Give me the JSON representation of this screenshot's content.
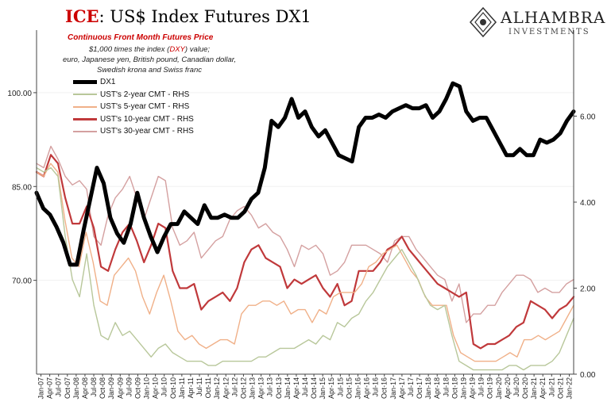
{
  "header": {
    "title_prefix": "ICE",
    "title_rest": ": US$ Index Futures DX1",
    "subtitle": "Continuous  Front Month Futures Price",
    "note_line1_pre": "$1,000 times the index (",
    "note_dxy": "DXY",
    "note_line1_post": ") value;",
    "note_line2": "euro, Japanese yen, British pound, Canadian dollar, Swedish krona and Swiss franc"
  },
  "logo": {
    "name": "ALHAMBRA",
    "sub": "INVESTMENTS",
    "icon": "alhambra-ornament-icon"
  },
  "colors": {
    "dx1": "#000000",
    "ust2": "#b8c79a",
    "ust5": "#f0b088",
    "ust10": "#c0393b",
    "ust30": "#d4a0a0"
  },
  "chart_data": {
    "type": "line",
    "left_axis": {
      "ticks": [
        "70.00",
        "85.00",
        "100.00"
      ],
      "tick_values": [
        70,
        85,
        100
      ],
      "ylim": [
        55,
        110
      ]
    },
    "right_axis": {
      "label": "RHS",
      "ticks": [
        "0.00",
        "2.00",
        "4.00",
        "6.00"
      ],
      "tick_values": [
        0,
        2,
        4,
        6
      ],
      "ylim": [
        0,
        8
      ]
    },
    "grid": false,
    "legend_position": "top-left",
    "x_tick_labels": [
      "Jan-07",
      "Apr-07",
      "Jul-07",
      "Oct-07",
      "Jan-08",
      "Apr-08",
      "Jul-08",
      "Oct-08",
      "Jan-09",
      "Apr-09",
      "Jul-09",
      "Oct-09",
      "Jan-10",
      "Apr-10",
      "Jul-10",
      "Oct-10",
      "Jan-11",
      "Apr-11",
      "Jul-11",
      "Oct-11",
      "Jan-12",
      "Apr-12",
      "Jul-12",
      "Oct-12",
      "Jan-13",
      "Apr-13",
      "Jul-13",
      "Oct-13",
      "Jan-14",
      "Apr-14",
      "Jul-14",
      "Oct-14",
      "Jan-15",
      "Apr-15",
      "Jul-15",
      "Oct-15",
      "Jan-16",
      "Apr-16",
      "Jul-16",
      "Oct-16",
      "Jan-17",
      "Apr-17",
      "Jul-17",
      "Oct-17",
      "Jan-18",
      "Apr-18",
      "Jul-18",
      "Oct-18",
      "Jan-19",
      "Apr-19",
      "Jul-19",
      "Oct-19",
      "Jan-20",
      "Apr-20",
      "Jul-20",
      "Oct-20",
      "Jan-21",
      "Apr-21",
      "Jul-21",
      "Oct-21",
      "Jan-22"
    ],
    "series": [
      {
        "key": "dx1",
        "name": "DX1",
        "axis": "left",
        "values": [
          84,
          81.5,
          80.5,
          78.5,
          76,
          72.5,
          72.5,
          78,
          83,
          88,
          85.5,
          80,
          77.5,
          76,
          79,
          84,
          80,
          77,
          74.5,
          77,
          79,
          79,
          81,
          80,
          79,
          82,
          80,
          80,
          80.5,
          80,
          80,
          81,
          83,
          84,
          88,
          95.5,
          94.5,
          96,
          99,
          96,
          97,
          94.5,
          93,
          94,
          92,
          90,
          89.5,
          89,
          94.5,
          96,
          96,
          96.5,
          96,
          97,
          97.5,
          98,
          97.5,
          97.5,
          98,
          96,
          97,
          99,
          101.5,
          101,
          97,
          95.5,
          96,
          96,
          94,
          92,
          90,
          90,
          91,
          90,
          90,
          92.5,
          92,
          92.5,
          93.5,
          95.5,
          97
        ]
      },
      {
        "key": "ust2",
        "name": "UST's 2-year CMT - RHS",
        "axis": "right",
        "values": [
          4.8,
          4.7,
          4.8,
          4.6,
          3.2,
          2.2,
          1.8,
          2.8,
          1.6,
          0.9,
          0.8,
          1.2,
          0.9,
          1.0,
          0.8,
          0.6,
          0.4,
          0.6,
          0.7,
          0.5,
          0.4,
          0.3,
          0.3,
          0.3,
          0.2,
          0.2,
          0.3,
          0.3,
          0.3,
          0.3,
          0.3,
          0.4,
          0.4,
          0.5,
          0.6,
          0.6,
          0.6,
          0.7,
          0.8,
          0.7,
          0.9,
          0.8,
          1.2,
          1.1,
          1.3,
          1.4,
          1.7,
          1.9,
          2.2,
          2.5,
          2.7,
          2.9,
          2.6,
          2.3,
          1.9,
          1.6,
          1.5,
          1.6,
          0.9,
          0.3,
          0.2,
          0.1,
          0.1,
          0.1,
          0.1,
          0.1,
          0.2,
          0.2,
          0.1,
          0.2,
          0.2,
          0.2,
          0.3,
          0.5,
          0.9,
          1.3
        ]
      },
      {
        "key": "ust5",
        "name": "UST's 5-year CMT - RHS",
        "axis": "right",
        "values": [
          4.7,
          4.6,
          4.9,
          4.7,
          3.6,
          2.7,
          2.5,
          3.3,
          2.6,
          1.7,
          1.6,
          2.3,
          2.5,
          2.7,
          2.4,
          1.8,
          1.4,
          1.9,
          2.3,
          1.7,
          1.0,
          0.8,
          0.9,
          0.7,
          0.6,
          0.7,
          0.8,
          0.8,
          0.7,
          1.4,
          1.6,
          1.6,
          1.7,
          1.7,
          1.6,
          1.7,
          1.4,
          1.5,
          1.5,
          1.2,
          1.5,
          1.4,
          1.8,
          1.9,
          1.9,
          1.9,
          2.1,
          2.5,
          2.6,
          2.8,
          2.9,
          3.0,
          2.7,
          2.4,
          2.2,
          1.8,
          1.6,
          1.6,
          1.6,
          0.9,
          0.5,
          0.4,
          0.3,
          0.3,
          0.3,
          0.3,
          0.4,
          0.5,
          0.4,
          0.8,
          0.8,
          0.9,
          0.8,
          0.9,
          1.0,
          1.3,
          1.6
        ]
      },
      {
        "key": "ust10",
        "name": "UST's 10-year CMT - RHS",
        "axis": "right",
        "values": [
          4.7,
          4.6,
          5.1,
          4.9,
          4.1,
          3.5,
          3.5,
          3.9,
          3.4,
          2.5,
          2.4,
          2.9,
          3.3,
          3.5,
          3.1,
          2.6,
          3.0,
          3.5,
          3.4,
          2.4,
          2.0,
          2.0,
          2.1,
          1.5,
          1.7,
          1.8,
          1.9,
          1.7,
          2.0,
          2.6,
          2.9,
          3.0,
          2.7,
          2.6,
          2.5,
          2.0,
          2.2,
          2.1,
          2.2,
          2.3,
          2.0,
          1.8,
          2.1,
          1.6,
          1.7,
          2.4,
          2.4,
          2.4,
          2.6,
          2.9,
          3.0,
          3.2,
          2.9,
          2.7,
          2.5,
          2.3,
          2.1,
          2.0,
          1.9,
          1.8,
          1.9,
          0.7,
          0.6,
          0.7,
          0.7,
          0.8,
          0.9,
          1.1,
          1.2,
          1.7,
          1.6,
          1.5,
          1.3,
          1.5,
          1.6,
          1.8
        ]
      },
      {
        "key": "ust30",
        "name": "UST's 30-year CMT - RHS",
        "axis": "right",
        "values": [
          4.9,
          4.8,
          5.3,
          5.0,
          4.6,
          4.4,
          4.5,
          4.3,
          3.2,
          3.0,
          3.7,
          4.1,
          4.3,
          4.6,
          4.1,
          3.6,
          4.1,
          4.6,
          4.5,
          3.4,
          3.0,
          3.1,
          3.3,
          2.7,
          2.9,
          3.1,
          3.2,
          3.6,
          3.8,
          3.9,
          3.7,
          3.4,
          3.5,
          3.3,
          3.2,
          2.9,
          2.5,
          3.0,
          2.9,
          3.0,
          2.8,
          2.3,
          2.4,
          2.6,
          3.0,
          3.0,
          3.0,
          2.9,
          2.8,
          2.6,
          3.1,
          3.2,
          3.2,
          2.9,
          2.7,
          2.5,
          2.3,
          2.2,
          1.7,
          2.1,
          1.2,
          1.4,
          1.4,
          1.6,
          1.6,
          1.9,
          2.1,
          2.3,
          2.3,
          2.2,
          1.9,
          2.0,
          1.9,
          1.9,
          2.1,
          2.2
        ]
      }
    ]
  }
}
